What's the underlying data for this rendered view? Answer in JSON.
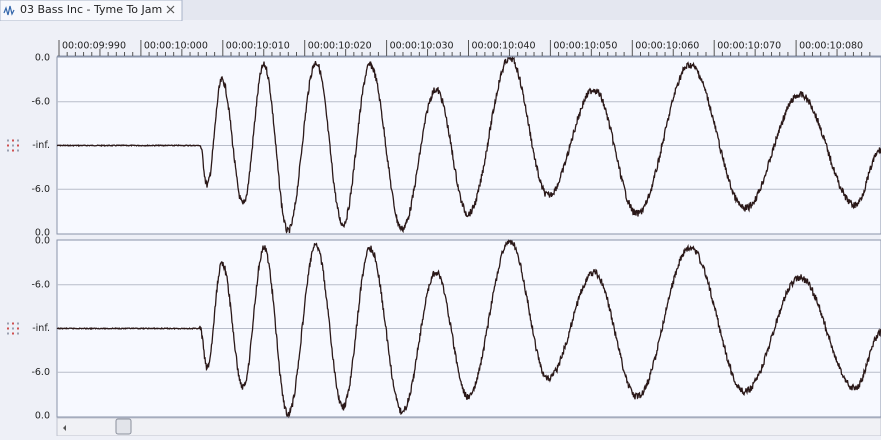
{
  "tab": {
    "title": "03 Bass Inc - Tyme To Jam"
  },
  "ruler": {
    "labels": [
      "00:00:09:990",
      "00:00:10:000",
      "00:00:10:010",
      "00:00:10:020",
      "00:00:10:030",
      "00:00:10:040",
      "00:00:10:050",
      "00:00:10:060",
      "00:00:10:070",
      "00:00:10:080"
    ]
  },
  "channels": [
    {
      "scale": [
        "0.0",
        "-6.0",
        "-inf.",
        "-6.0",
        "0.0"
      ]
    },
    {
      "scale": [
        "0.0",
        "-6.0",
        "-inf.",
        "-6.0",
        "0.0"
      ]
    }
  ]
}
